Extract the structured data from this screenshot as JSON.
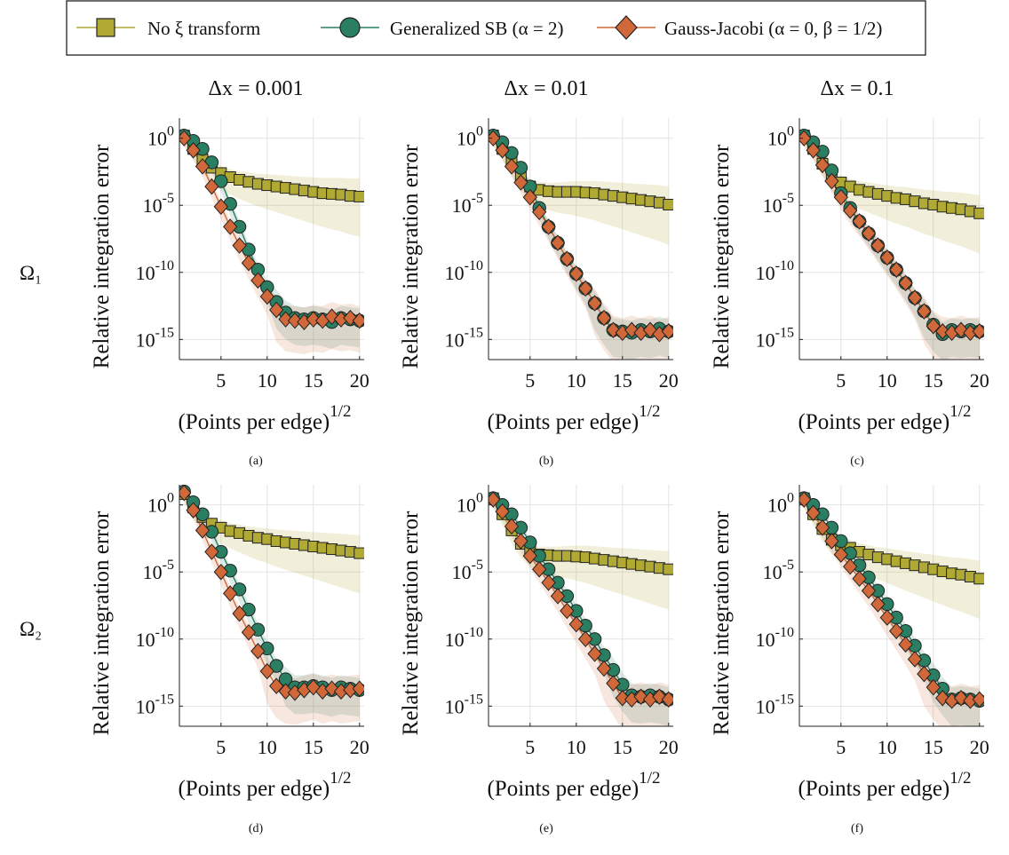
{
  "legend": {
    "entries": [
      {
        "label": "No ξ transform",
        "marker": "square"
      },
      {
        "label": "Generalized SB (α = 2)",
        "marker": "circle"
      },
      {
        "label": "Gauss-Jacobi (α = 0, β = 1/2)",
        "marker": "diamond"
      }
    ]
  },
  "column_titles": [
    "Δx = 0.001",
    "Δx = 0.01",
    "Δx = 0.1"
  ],
  "row_labels": [
    "Ω₁",
    "Ω₂"
  ],
  "colors": {
    "no_transform": "#b0a933",
    "generalized_sb": "#2a7f62",
    "gauss_jacobi": "#d0683a"
  },
  "chart_data": [
    {
      "panel": "(a)",
      "type": "line",
      "ylog": true,
      "ylabel": "Relative integration error",
      "xlabel": "(Points per edge)^1/2",
      "xticks": [
        5,
        10,
        15,
        20
      ],
      "yticks": [
        "10^0",
        "10^-5",
        "10^-10",
        "10^-15"
      ],
      "xlim": [
        0.5,
        20.5
      ],
      "ylim_log10": [
        -16.5,
        1.5
      ],
      "grid": true,
      "series": [
        {
          "name": "No ξ transform",
          "x": [
            1,
            2,
            3,
            4,
            5,
            6,
            7,
            8,
            9,
            10,
            11,
            12,
            13,
            14,
            15,
            16,
            17,
            18,
            19,
            20
          ],
          "log10_y": [
            0.2,
            -0.8,
            -1.6,
            -2.2,
            -2.6,
            -2.9,
            -3.1,
            -3.25,
            -3.4,
            -3.5,
            -3.6,
            -3.7,
            -3.8,
            -3.9,
            -4.0,
            -4.1,
            -4.15,
            -4.2,
            -4.3,
            -4.35
          ]
        },
        {
          "name": "Generalized SB (α = 2)",
          "x": [
            1,
            2,
            3,
            4,
            5,
            6,
            7,
            8,
            9,
            10,
            11,
            12,
            13,
            14,
            15,
            16,
            17,
            18,
            19,
            20
          ],
          "log10_y": [
            0.2,
            -0.2,
            -0.8,
            -1.8,
            -3.2,
            -4.9,
            -6.6,
            -8.3,
            -9.8,
            -11.1,
            -12.2,
            -13.0,
            -13.4,
            -13.5,
            -13.4,
            -13.5,
            -13.7,
            -13.4,
            -13.5,
            -13.6
          ]
        },
        {
          "name": "Gauss-Jacobi (α = 0, β = 1/2)",
          "x": [
            1,
            2,
            3,
            4,
            5,
            6,
            7,
            8,
            9,
            10,
            11,
            12,
            13,
            14,
            15,
            16,
            17,
            18,
            19,
            20
          ],
          "log10_y": [
            0.0,
            -0.9,
            -2.1,
            -3.6,
            -5.1,
            -6.6,
            -8.0,
            -9.3,
            -10.6,
            -11.8,
            -12.8,
            -13.5,
            -13.6,
            -13.7,
            -13.5,
            -13.6,
            -13.3,
            -13.5,
            -13.4,
            -13.6
          ]
        }
      ]
    },
    {
      "panel": "(b)",
      "type": "line",
      "ylog": true,
      "ylabel": "Relative integration error",
      "xlabel": "(Points per edge)^1/2",
      "xticks": [
        5,
        10,
        15,
        20
      ],
      "yticks": [
        "10^0",
        "10^-5",
        "10^-10",
        "10^-15"
      ],
      "xlim": [
        0.5,
        20.5
      ],
      "ylim_log10": [
        -16.5,
        1.5
      ],
      "grid": true,
      "series": [
        {
          "name": "No ξ transform",
          "x": [
            1,
            2,
            3,
            4,
            5,
            6,
            7,
            8,
            9,
            10,
            11,
            12,
            13,
            14,
            15,
            16,
            17,
            18,
            19,
            20
          ],
          "log10_y": [
            0.2,
            -0.8,
            -1.8,
            -2.8,
            -3.6,
            -3.85,
            -3.95,
            -4.0,
            -4.0,
            -4.0,
            -4.05,
            -4.1,
            -4.2,
            -4.3,
            -4.4,
            -4.5,
            -4.6,
            -4.7,
            -4.8,
            -4.95
          ]
        },
        {
          "name": "Generalized SB (α = 2)",
          "x": [
            1,
            2,
            3,
            4,
            5,
            6,
            7,
            8,
            9,
            10,
            11,
            12,
            13,
            14,
            15,
            16,
            17,
            18,
            19,
            20
          ],
          "log10_y": [
            0.2,
            -0.3,
            -1.1,
            -2.2,
            -3.6,
            -5.2,
            -6.6,
            -7.8,
            -9.0,
            -10.1,
            -11.2,
            -12.3,
            -13.4,
            -14.3,
            -14.4,
            -14.5,
            -14.3,
            -14.4,
            -14.2,
            -14.4
          ]
        },
        {
          "name": "Gauss-Jacobi (α = 0, β = 1/2)",
          "x": [
            1,
            2,
            3,
            4,
            5,
            6,
            7,
            8,
            9,
            10,
            11,
            12,
            13,
            14,
            15,
            16,
            17,
            18,
            19,
            20
          ],
          "log10_y": [
            0.0,
            -0.9,
            -2.1,
            -3.3,
            -4.4,
            -5.5,
            -6.6,
            -7.8,
            -9.0,
            -10.1,
            -11.2,
            -12.3,
            -13.4,
            -14.3,
            -14.5,
            -14.3,
            -14.5,
            -14.3,
            -14.6,
            -14.4
          ]
        }
      ]
    },
    {
      "panel": "(c)",
      "type": "line",
      "ylog": true,
      "ylabel": "Relative integration error",
      "xlabel": "(Points per edge)^1/2",
      "xticks": [
        5,
        10,
        15,
        20
      ],
      "yticks": [
        "10^0",
        "10^-5",
        "10^-10",
        "10^-15"
      ],
      "xlim": [
        0.5,
        20.5
      ],
      "ylim_log10": [
        -16.5,
        1.5
      ],
      "grid": true,
      "series": [
        {
          "name": "No ξ transform",
          "x": [
            1,
            2,
            3,
            4,
            5,
            6,
            7,
            8,
            9,
            10,
            11,
            12,
            13,
            14,
            15,
            16,
            17,
            18,
            19,
            20
          ],
          "log10_y": [
            0.2,
            -0.8,
            -1.9,
            -2.9,
            -3.3,
            -3.6,
            -3.85,
            -4.0,
            -4.15,
            -4.3,
            -4.45,
            -4.55,
            -4.7,
            -4.85,
            -4.95,
            -5.1,
            -5.2,
            -5.3,
            -5.45,
            -5.6
          ]
        },
        {
          "name": "Generalized SB (α = 2)",
          "x": [
            1,
            2,
            3,
            4,
            5,
            6,
            7,
            8,
            9,
            10,
            11,
            12,
            13,
            14,
            15,
            16,
            17,
            18,
            19,
            20
          ],
          "log10_y": [
            0.2,
            -0.3,
            -1.0,
            -2.4,
            -4.1,
            -5.2,
            -6.2,
            -7.1,
            -8.0,
            -8.9,
            -9.8,
            -10.8,
            -11.9,
            -12.9,
            -13.9,
            -14.6,
            -14.3,
            -14.4,
            -14.3,
            -14.4
          ]
        },
        {
          "name": "Gauss-Jacobi (α = 0, β = 1/2)",
          "x": [
            1,
            2,
            3,
            4,
            5,
            6,
            7,
            8,
            9,
            10,
            11,
            12,
            13,
            14,
            15,
            16,
            17,
            18,
            19,
            20
          ],
          "log10_y": [
            0.0,
            -0.9,
            -2.0,
            -3.2,
            -4.4,
            -5.4,
            -6.2,
            -7.1,
            -8.0,
            -8.9,
            -9.8,
            -10.8,
            -11.9,
            -12.9,
            -14.0,
            -14.4,
            -14.5,
            -14.3,
            -14.5,
            -14.4
          ]
        }
      ]
    },
    {
      "panel": "(d)",
      "type": "line",
      "ylog": true,
      "ylabel": "Relative integration error",
      "xlabel": "(Points per edge)^1/2",
      "xticks": [
        5,
        10,
        15,
        20
      ],
      "yticks": [
        "10^0",
        "10^-5",
        "10^-10",
        "10^-15"
      ],
      "xlim": [
        0.5,
        20.5
      ],
      "ylim_log10": [
        -16.5,
        1.5
      ],
      "grid": true,
      "series": [
        {
          "name": "No ξ transform",
          "x": [
            1,
            2,
            3,
            4,
            5,
            6,
            7,
            8,
            9,
            10,
            11,
            12,
            13,
            14,
            15,
            16,
            17,
            18,
            19,
            20
          ],
          "log10_y": [
            0.8,
            -0.2,
            -0.9,
            -1.4,
            -1.7,
            -1.95,
            -2.1,
            -2.3,
            -2.45,
            -2.55,
            -2.7,
            -2.8,
            -2.9,
            -3.0,
            -3.1,
            -3.2,
            -3.3,
            -3.4,
            -3.5,
            -3.6
          ]
        },
        {
          "name": "Generalized SB (α = 2)",
          "x": [
            1,
            2,
            3,
            4,
            5,
            6,
            7,
            8,
            9,
            10,
            11,
            12,
            13,
            14,
            15,
            16,
            17,
            18,
            19,
            20
          ],
          "log10_y": [
            1.0,
            0.2,
            -0.7,
            -2.0,
            -3.5,
            -4.9,
            -6.3,
            -7.8,
            -9.3,
            -10.7,
            -12.0,
            -13.0,
            -13.6,
            -13.6,
            -13.5,
            -13.6,
            -13.8,
            -13.6,
            -13.7,
            -13.8
          ]
        },
        {
          "name": "Gauss-Jacobi (α = 0, β = 1/2)",
          "x": [
            1,
            2,
            3,
            4,
            5,
            6,
            7,
            8,
            9,
            10,
            11,
            12,
            13,
            14,
            15,
            16,
            17,
            18,
            19,
            20
          ],
          "log10_y": [
            0.9,
            -0.4,
            -1.9,
            -3.5,
            -5.0,
            -6.6,
            -8.1,
            -9.5,
            -10.9,
            -12.4,
            -13.5,
            -13.9,
            -14.0,
            -13.8,
            -13.6,
            -13.9,
            -13.7,
            -13.9,
            -13.8,
            -13.7
          ]
        }
      ]
    },
    {
      "panel": "(e)",
      "type": "line",
      "ylog": true,
      "ylabel": "Relative integration error",
      "xlabel": "(Points per edge)^1/2",
      "xticks": [
        5,
        10,
        15,
        20
      ],
      "yticks": [
        "10^0",
        "10^-5",
        "10^-10",
        "10^-15"
      ],
      "xlim": [
        0.5,
        20.5
      ],
      "ylim_log10": [
        -16.5,
        1.5
      ],
      "grid": true,
      "series": [
        {
          "name": "No ξ transform",
          "x": [
            1,
            2,
            3,
            4,
            5,
            6,
            7,
            8,
            9,
            10,
            11,
            12,
            13,
            14,
            15,
            16,
            17,
            18,
            19,
            20
          ],
          "log10_y": [
            0.5,
            -0.7,
            -1.9,
            -2.9,
            -3.4,
            -3.7,
            -3.75,
            -3.8,
            -3.8,
            -3.85,
            -3.9,
            -4.0,
            -4.1,
            -4.2,
            -4.3,
            -4.4,
            -4.5,
            -4.6,
            -4.7,
            -4.8
          ]
        },
        {
          "name": "Generalized SB (α = 2)",
          "x": [
            1,
            2,
            3,
            4,
            5,
            6,
            7,
            8,
            9,
            10,
            11,
            12,
            13,
            14,
            15,
            16,
            17,
            18,
            19,
            20
          ],
          "log10_y": [
            0.5,
            0.0,
            -0.7,
            -1.7,
            -2.8,
            -3.8,
            -4.8,
            -5.8,
            -6.8,
            -7.9,
            -9.0,
            -10.0,
            -11.2,
            -12.3,
            -13.4,
            -14.2,
            -14.3,
            -14.2,
            -14.3,
            -14.5
          ]
        },
        {
          "name": "Gauss-Jacobi (α = 0, β = 1/2)",
          "x": [
            1,
            2,
            3,
            4,
            5,
            6,
            7,
            8,
            9,
            10,
            11,
            12,
            13,
            14,
            15,
            16,
            17,
            18,
            19,
            20
          ],
          "log10_y": [
            0.4,
            -0.5,
            -1.6,
            -2.7,
            -3.8,
            -4.8,
            -5.8,
            -6.8,
            -7.9,
            -8.9,
            -10.0,
            -11.1,
            -12.2,
            -13.3,
            -14.4,
            -14.5,
            -14.3,
            -14.5,
            -14.3,
            -14.5
          ]
        }
      ]
    },
    {
      "panel": "(f)",
      "type": "line",
      "ylog": true,
      "ylabel": "Relative integration error",
      "xlabel": "(Points per edge)^1/2",
      "xticks": [
        5,
        10,
        15,
        20
      ],
      "yticks": [
        "10^0",
        "10^-5",
        "10^-10",
        "10^-15"
      ],
      "xlim": [
        0.5,
        20.5
      ],
      "ylim_log10": [
        -16.5,
        1.5
      ],
      "grid": true,
      "series": [
        {
          "name": "No ξ transform",
          "x": [
            1,
            2,
            3,
            4,
            5,
            6,
            7,
            8,
            9,
            10,
            11,
            12,
            13,
            14,
            15,
            16,
            17,
            18,
            19,
            20
          ],
          "log10_y": [
            0.5,
            -0.7,
            -1.8,
            -2.6,
            -3.0,
            -3.2,
            -3.5,
            -3.7,
            -3.9,
            -4.05,
            -4.2,
            -4.35,
            -4.5,
            -4.65,
            -4.8,
            -4.95,
            -5.1,
            -5.2,
            -5.35,
            -5.5
          ]
        },
        {
          "name": "Generalized SB (α = 2)",
          "x": [
            1,
            2,
            3,
            4,
            5,
            6,
            7,
            8,
            9,
            10,
            11,
            12,
            13,
            14,
            15,
            16,
            17,
            18,
            19,
            20
          ],
          "log10_y": [
            0.5,
            0.0,
            -0.7,
            -1.7,
            -2.7,
            -3.6,
            -4.5,
            -5.4,
            -6.4,
            -7.4,
            -8.4,
            -9.4,
            -10.5,
            -11.6,
            -12.7,
            -13.7,
            -14.5,
            -14.4,
            -14.5,
            -14.6
          ]
        },
        {
          "name": "Gauss-Jacobi (α = 0, β = 1/2)",
          "x": [
            1,
            2,
            3,
            4,
            5,
            6,
            7,
            8,
            9,
            10,
            11,
            12,
            13,
            14,
            15,
            16,
            17,
            18,
            19,
            20
          ],
          "log10_y": [
            0.4,
            -0.6,
            -1.7,
            -2.7,
            -3.7,
            -4.6,
            -5.5,
            -6.4,
            -7.4,
            -8.4,
            -9.4,
            -10.4,
            -11.5,
            -12.6,
            -13.6,
            -14.4,
            -14.6,
            -14.4,
            -14.6,
            -14.5
          ]
        }
      ]
    }
  ]
}
